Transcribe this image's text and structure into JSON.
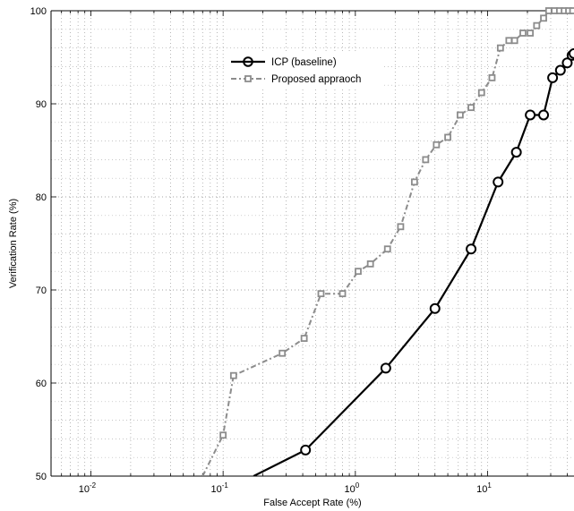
{
  "chart_data": {
    "type": "line",
    "xlabel": "False Accept Rate (%)",
    "ylabel": "Verification Rate (%)",
    "xscale": "log",
    "xlim": [
      0.005,
      45
    ],
    "ylim": [
      50,
      100
    ],
    "x_ticks": [
      {
        "value": 0.01,
        "base": "10",
        "exp": "-2"
      },
      {
        "value": 0.1,
        "base": "10",
        "exp": "-1"
      },
      {
        "value": 1,
        "base": "10",
        "exp": "0"
      },
      {
        "value": 10,
        "base": "10",
        "exp": "1"
      }
    ],
    "y_ticks": [
      "50",
      "60",
      "70",
      "80",
      "90",
      "100"
    ],
    "grid": true,
    "legend_position": "top-center",
    "series": [
      {
        "name": "ICP (baseline)",
        "color": "#000000",
        "line_style": "solid",
        "marker": "circle",
        "points": [
          [
            0.17,
            50.0
          ],
          [
            0.42,
            52.8
          ],
          [
            1.7,
            61.6
          ],
          [
            4.0,
            68.0
          ],
          [
            7.5,
            74.4
          ],
          [
            12.0,
            81.6
          ],
          [
            16.5,
            84.8
          ],
          [
            21.0,
            88.8
          ],
          [
            26.5,
            88.8
          ],
          [
            31.0,
            92.8
          ],
          [
            35.5,
            93.6
          ],
          [
            40.0,
            94.4
          ],
          [
            43.5,
            95.2
          ],
          [
            45.0,
            95.4
          ]
        ]
      },
      {
        "name": "Proposed appraoch",
        "color": "#8c8c8c",
        "line_style": "dash-dot",
        "marker": "square",
        "points": [
          [
            0.07,
            50.0
          ],
          [
            0.1,
            54.4
          ],
          [
            0.12,
            60.8
          ],
          [
            0.28,
            63.2
          ],
          [
            0.41,
            64.8
          ],
          [
            0.55,
            69.6
          ],
          [
            0.8,
            69.6
          ],
          [
            1.05,
            72.0
          ],
          [
            1.3,
            72.8
          ],
          [
            1.75,
            74.4
          ],
          [
            2.2,
            76.8
          ],
          [
            2.8,
            81.6
          ],
          [
            3.4,
            84.0
          ],
          [
            4.1,
            85.6
          ],
          [
            5.0,
            86.4
          ],
          [
            6.2,
            88.8
          ],
          [
            7.5,
            89.6
          ],
          [
            9.0,
            91.2
          ],
          [
            10.8,
            92.8
          ],
          [
            12.5,
            96.0
          ],
          [
            14.5,
            96.8
          ],
          [
            16.0,
            96.8
          ],
          [
            18.5,
            97.6
          ],
          [
            21.0,
            97.6
          ],
          [
            23.5,
            98.4
          ],
          [
            26.5,
            99.2
          ],
          [
            29.0,
            100.0
          ],
          [
            32.0,
            100.0
          ],
          [
            35.0,
            100.0
          ],
          [
            38.0,
            100.0
          ],
          [
            41.0,
            100.0
          ],
          [
            44.0,
            100.0
          ]
        ]
      }
    ]
  }
}
